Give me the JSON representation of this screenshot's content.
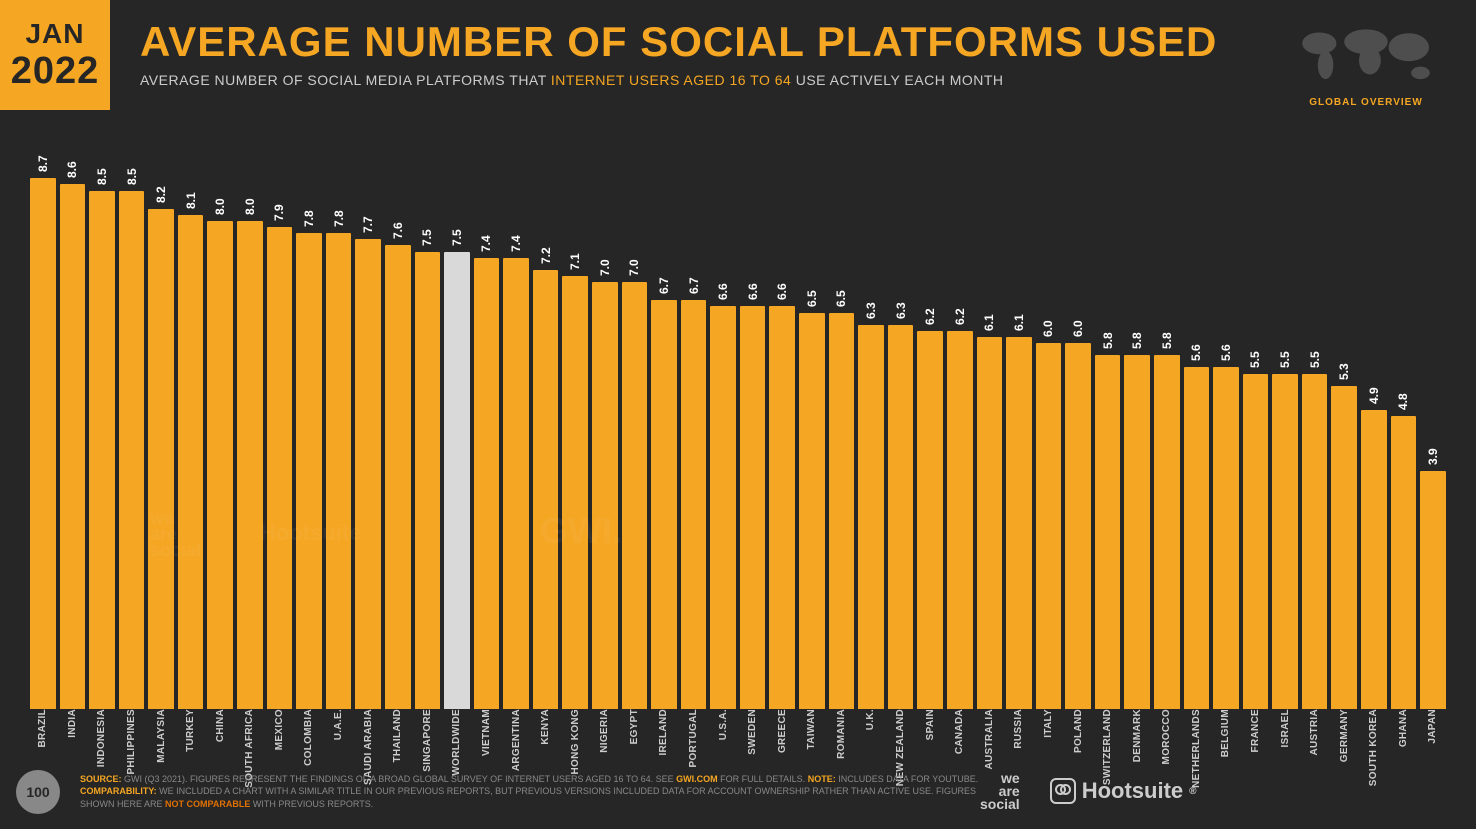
{
  "date": {
    "month": "JAN",
    "year": "2022"
  },
  "title": "AVERAGE NUMBER OF SOCIAL PLATFORMS USED",
  "subtitle_pre": "AVERAGE NUMBER OF SOCIAL MEDIA PLATFORMS THAT ",
  "subtitle_highlight": "INTERNET USERS AGED 16 TO 64",
  "subtitle_post": " USE ACTIVELY EACH MONTH",
  "map_label": "GLOBAL OVERVIEW",
  "page_number": "100",
  "chart": {
    "type": "bar",
    "max_value": 9.0,
    "default_color": "#f5a623",
    "highlight_color": "#d9d9d9",
    "background": "#262626",
    "value_color": "#ffffff",
    "label_color": "#cccccc",
    "value_fontsize": 12,
    "label_fontsize": 10,
    "bars": [
      {
        "label": "BRAZIL",
        "value": 8.7
      },
      {
        "label": "INDIA",
        "value": 8.6
      },
      {
        "label": "INDONESIA",
        "value": 8.5
      },
      {
        "label": "PHILIPPINES",
        "value": 8.5
      },
      {
        "label": "MALAYSIA",
        "value": 8.2
      },
      {
        "label": "TURKEY",
        "value": 8.1
      },
      {
        "label": "CHINA",
        "value": 8.0
      },
      {
        "label": "SOUTH AFRICA",
        "value": 8.0
      },
      {
        "label": "MEXICO",
        "value": 7.9
      },
      {
        "label": "COLOMBIA",
        "value": 7.8
      },
      {
        "label": "U.A.E.",
        "value": 7.8
      },
      {
        "label": "SAUDI ARABIA",
        "value": 7.7
      },
      {
        "label": "THAILAND",
        "value": 7.6
      },
      {
        "label": "SINGAPORE",
        "value": 7.5
      },
      {
        "label": "WORLDWIDE",
        "value": 7.5,
        "highlighted": true
      },
      {
        "label": "VIETNAM",
        "value": 7.4
      },
      {
        "label": "ARGENTINA",
        "value": 7.4
      },
      {
        "label": "KENYA",
        "value": 7.2
      },
      {
        "label": "HONG KONG",
        "value": 7.1
      },
      {
        "label": "NIGERIA",
        "value": 7.0
      },
      {
        "label": "EGYPT",
        "value": 7.0
      },
      {
        "label": "IRELAND",
        "value": 6.7
      },
      {
        "label": "PORTUGAL",
        "value": 6.7
      },
      {
        "label": "U.S.A.",
        "value": 6.6
      },
      {
        "label": "SWEDEN",
        "value": 6.6
      },
      {
        "label": "GREECE",
        "value": 6.6
      },
      {
        "label": "TAIWAN",
        "value": 6.5
      },
      {
        "label": "ROMANIA",
        "value": 6.5
      },
      {
        "label": "U.K.",
        "value": 6.3
      },
      {
        "label": "NEW ZEALAND",
        "value": 6.3
      },
      {
        "label": "SPAIN",
        "value": 6.2
      },
      {
        "label": "CANADA",
        "value": 6.2
      },
      {
        "label": "AUSTRALIA",
        "value": 6.1
      },
      {
        "label": "RUSSIA",
        "value": 6.1
      },
      {
        "label": "ITALY",
        "value": 6.0
      },
      {
        "label": "POLAND",
        "value": 6.0
      },
      {
        "label": "SWITZERLAND",
        "value": 5.8
      },
      {
        "label": "DENMARK",
        "value": 5.8
      },
      {
        "label": "MOROCCO",
        "value": 5.8
      },
      {
        "label": "NETHERLANDS",
        "value": 5.6
      },
      {
        "label": "BELGIUM",
        "value": 5.6
      },
      {
        "label": "FRANCE",
        "value": 5.5
      },
      {
        "label": "ISRAEL",
        "value": 5.5
      },
      {
        "label": "AUSTRIA",
        "value": 5.5
      },
      {
        "label": "GERMANY",
        "value": 5.3
      },
      {
        "label": "SOUTH KOREA",
        "value": 4.9
      },
      {
        "label": "GHANA",
        "value": 4.8
      },
      {
        "label": "JAPAN",
        "value": 3.9
      }
    ]
  },
  "footnote": {
    "source_label": "SOURCE:",
    "source_text": " GWI (Q3 2021). FIGURES REPRESENT THE FINDINGS OF A BROAD GLOBAL SURVEY OF INTERNET USERS AGED 16 TO 64. SEE ",
    "source_link": "GWI.COM",
    "source_text2": " FOR FULL DETAILS. ",
    "note_label": "NOTE:",
    "note_text": " INCLUDES DATA FOR YOUTUBE. ",
    "comp_label": "COMPARABILITY:",
    "comp_text": " WE INCLUDED A CHART WITH A SIMILAR TITLE IN OUR PREVIOUS REPORTS, BUT PREVIOUS VERSIONS INCLUDED DATA FOR ACCOUNT OWNERSHIP RATHER THAN ACTIVE USE. FIGURES SHOWN HERE ARE ",
    "comp_red": "NOT COMPARABLE",
    "comp_text2": " WITH PREVIOUS REPORTS."
  },
  "logos": {
    "was1": "we",
    "was2": "are",
    "was3": "social",
    "hoot": "Hootsuite",
    "hoot_mark": "®"
  },
  "watermarks": {
    "w1": "we\nare\nsocial",
    "w2": "Hootsuite",
    "w3": "GWI."
  }
}
